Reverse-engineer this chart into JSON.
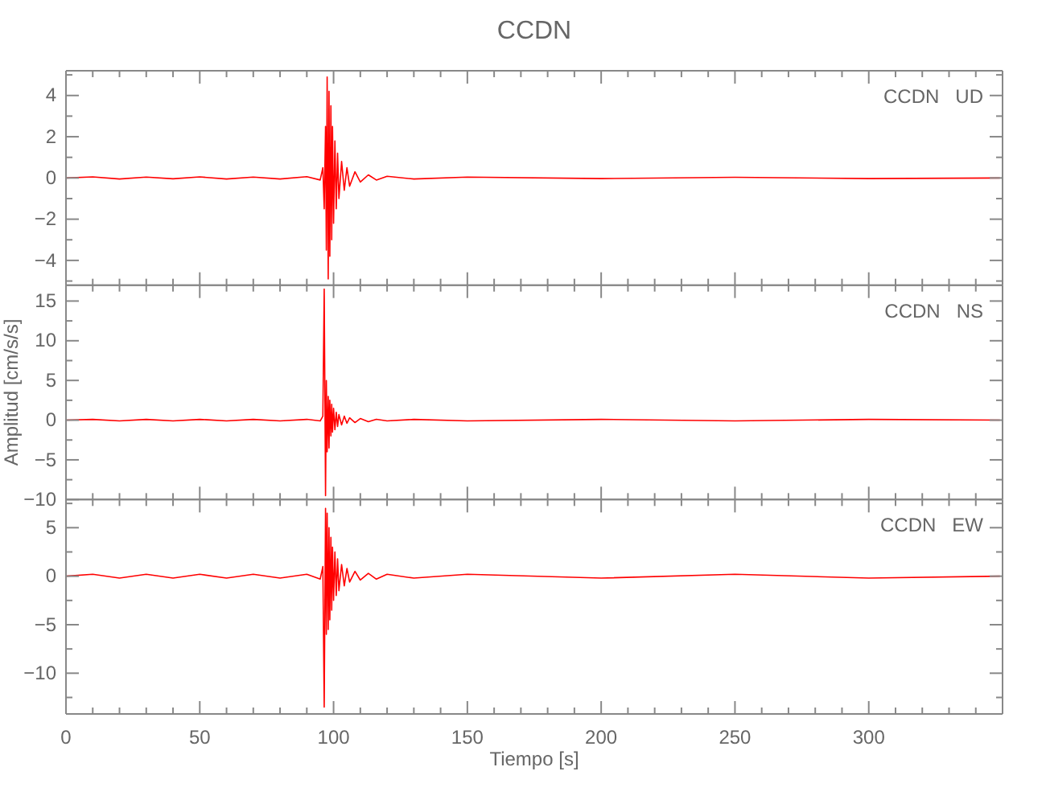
{
  "chart_data": [
    {
      "type": "line",
      "title": "CCDN",
      "annotations": [
        "CCDN   UD"
      ],
      "tick_labels": "y",
      "grid": false,
      "marker": "none",
      "line_style": "solid",
      "xlim": [
        0,
        350
      ],
      "xticks": [
        0,
        {
          "value": 10,
          "label": null
        },
        {
          "value": 20,
          "label": null
        },
        {
          "value": 30,
          "label": null
        },
        {
          "value": 40,
          "label": null
        },
        50,
        {
          "value": 60,
          "label": null
        },
        {
          "value": 70,
          "label": null
        },
        {
          "value": 80,
          "label": null
        },
        {
          "value": 90,
          "label": null
        },
        100,
        {
          "value": 110,
          "label": null
        },
        {
          "value": 120,
          "label": null
        },
        {
          "value": 130,
          "label": null
        },
        {
          "value": 140,
          "label": null
        },
        150,
        {
          "value": 160,
          "label": null
        },
        {
          "value": 170,
          "label": null
        },
        {
          "value": 180,
          "label": null
        },
        {
          "value": 190,
          "label": null
        },
        200,
        {
          "value": 210,
          "label": null
        },
        {
          "value": 220,
          "label": null
        },
        {
          "value": 230,
          "label": null
        },
        {
          "value": 240,
          "label": null
        },
        250,
        {
          "value": 260,
          "label": null
        },
        {
          "value": 270,
          "label": null
        },
        {
          "value": 280,
          "label": null
        },
        {
          "value": 290,
          "label": null
        },
        300,
        {
          "value": 310,
          "label": null
        },
        {
          "value": 320,
          "label": null
        },
        {
          "value": 330,
          "label": null
        },
        {
          "value": 340,
          "label": null
        }
      ],
      "ylim": [
        -5.2,
        5.2
      ],
      "yticks": [
        {
          "value": -5,
          "label": null
        },
        -4,
        {
          "value": -3,
          "label": null
        },
        -2,
        {
          "value": -1,
          "label": null
        },
        0,
        {
          "value": 1,
          "label": null
        },
        2,
        {
          "value": 3,
          "label": null
        },
        4,
        {
          "value": 5,
          "label": null
        }
      ],
      "series": [
        {
          "color": "#ff0000",
          "x": [
            0,
            10,
            20,
            30,
            40,
            50,
            60,
            70,
            80,
            90,
            95,
            96,
            96.5,
            97,
            97.3,
            97.6,
            98,
            98.3,
            98.6,
            99,
            99.3,
            99.6,
            100,
            100.5,
            101,
            101.5,
            102,
            103,
            104,
            105,
            106,
            108,
            110,
            113,
            116,
            120,
            130,
            150,
            200,
            250,
            300,
            349
          ],
          "values": [
            0,
            0.05,
            -0.05,
            0.04,
            -0.04,
            0.05,
            -0.05,
            0.04,
            -0.05,
            0.06,
            -0.1,
            0.5,
            -1.5,
            2.5,
            -3.5,
            4.9,
            -4.9,
            4.2,
            -3.8,
            3.5,
            -3,
            2.5,
            -2.2,
            1.8,
            -1.5,
            1.2,
            -1,
            0.8,
            -0.6,
            0.5,
            -0.4,
            0.3,
            -0.2,
            0.15,
            -0.1,
            0.08,
            -0.05,
            0.04,
            -0.03,
            0.03,
            -0.03,
            0
          ]
        }
      ]
    },
    {
      "type": "line",
      "ylabel": "Amplitud [cm/s/s]",
      "annotations": [
        "CCDN   NS"
      ],
      "tick_labels": "y",
      "grid": false,
      "marker": "none",
      "line_style": "solid",
      "xlim": [
        0,
        350
      ],
      "xticks": [
        0,
        {
          "value": 10,
          "label": null
        },
        {
          "value": 20,
          "label": null
        },
        {
          "value": 30,
          "label": null
        },
        {
          "value": 40,
          "label": null
        },
        50,
        {
          "value": 60,
          "label": null
        },
        {
          "value": 70,
          "label": null
        },
        {
          "value": 80,
          "label": null
        },
        {
          "value": 90,
          "label": null
        },
        100,
        {
          "value": 110,
          "label": null
        },
        {
          "value": 120,
          "label": null
        },
        {
          "value": 130,
          "label": null
        },
        {
          "value": 140,
          "label": null
        },
        150,
        {
          "value": 160,
          "label": null
        },
        {
          "value": 170,
          "label": null
        },
        {
          "value": 180,
          "label": null
        },
        {
          "value": 190,
          "label": null
        },
        200,
        {
          "value": 210,
          "label": null
        },
        {
          "value": 220,
          "label": null
        },
        {
          "value": 230,
          "label": null
        },
        {
          "value": 240,
          "label": null
        },
        250,
        {
          "value": 260,
          "label": null
        },
        {
          "value": 270,
          "label": null
        },
        {
          "value": 280,
          "label": null
        },
        {
          "value": 290,
          "label": null
        },
        300,
        {
          "value": 310,
          "label": null
        },
        {
          "value": 320,
          "label": null
        },
        {
          "value": 330,
          "label": null
        },
        {
          "value": 340,
          "label": null
        }
      ],
      "ylim": [
        -10,
        17
      ],
      "yticks": [
        -10,
        {
          "value": -7.5,
          "label": null
        },
        -5,
        {
          "value": -2.5,
          "label": null
        },
        0,
        {
          "value": 2.5,
          "label": null
        },
        5,
        {
          "value": 7.5,
          "label": null
        },
        10,
        {
          "value": 12.5,
          "label": null
        },
        15
      ],
      "series": [
        {
          "color": "#ff0000",
          "x": [
            0,
            10,
            20,
            30,
            40,
            50,
            60,
            70,
            80,
            90,
            95,
            96,
            96.5,
            97,
            97.3,
            97.6,
            98,
            98.3,
            98.6,
            99,
            99.3,
            99.6,
            100,
            100.5,
            101,
            101.5,
            102,
            103,
            104,
            105,
            106,
            108,
            110,
            113,
            116,
            120,
            130,
            150,
            200,
            250,
            300,
            349
          ],
          "values": [
            0,
            0.1,
            -0.1,
            0.1,
            -0.1,
            0.1,
            -0.1,
            0.1,
            -0.1,
            0.1,
            -0.1,
            0.5,
            16.5,
            -9.5,
            5,
            -4,
            3,
            -3.5,
            2.5,
            -2,
            2,
            -1.5,
            1.5,
            -1.2,
            1,
            -0.8,
            0.7,
            -0.6,
            0.5,
            -0.4,
            0.3,
            -0.3,
            0.2,
            -0.2,
            0.1,
            -0.1,
            0.1,
            -0.1,
            0.1,
            -0.1,
            0.1,
            0
          ]
        }
      ]
    },
    {
      "type": "line",
      "xlabel": "Tiempo [s]",
      "annotations": [
        "CCDN   EW"
      ],
      "grid": false,
      "marker": "none",
      "line_style": "solid",
      "xlim": [
        0,
        350
      ],
      "xticks": [
        0,
        {
          "value": 10,
          "label": null
        },
        {
          "value": 20,
          "label": null
        },
        {
          "value": 30,
          "label": null
        },
        {
          "value": 40,
          "label": null
        },
        50,
        {
          "value": 60,
          "label": null
        },
        {
          "value": 70,
          "label": null
        },
        {
          "value": 80,
          "label": null
        },
        {
          "value": 90,
          "label": null
        },
        100,
        {
          "value": 110,
          "label": null
        },
        {
          "value": 120,
          "label": null
        },
        {
          "value": 130,
          "label": null
        },
        {
          "value": 140,
          "label": null
        },
        150,
        {
          "value": 160,
          "label": null
        },
        {
          "value": 170,
          "label": null
        },
        {
          "value": 180,
          "label": null
        },
        {
          "value": 190,
          "label": null
        },
        200,
        {
          "value": 210,
          "label": null
        },
        {
          "value": 220,
          "label": null
        },
        {
          "value": 230,
          "label": null
        },
        {
          "value": 240,
          "label": null
        },
        250,
        {
          "value": 260,
          "label": null
        },
        {
          "value": 270,
          "label": null
        },
        {
          "value": 280,
          "label": null
        },
        {
          "value": 290,
          "label": null
        },
        300,
        {
          "value": 310,
          "label": null
        },
        {
          "value": 320,
          "label": null
        },
        {
          "value": 330,
          "label": null
        },
        {
          "value": 340,
          "label": null
        }
      ],
      "ylim": [
        -14.2,
        7.9
      ],
      "yticks": [
        {
          "value": -12.5,
          "label": null
        },
        -10,
        {
          "value": -7.5,
          "label": null
        },
        -5,
        {
          "value": -2.5,
          "label": null
        },
        0,
        {
          "value": 2.5,
          "label": null
        },
        5,
        {
          "value": 7.5,
          "label": null
        }
      ],
      "series": [
        {
          "color": "#ff0000",
          "x": [
            0,
            10,
            20,
            30,
            40,
            50,
            60,
            70,
            80,
            90,
            95,
            96,
            96.5,
            97,
            97.3,
            97.6,
            98,
            98.3,
            98.6,
            99,
            99.3,
            99.6,
            100,
            100.5,
            101,
            101.5,
            102,
            103,
            104,
            105,
            106,
            108,
            110,
            113,
            116,
            120,
            130,
            150,
            200,
            250,
            300,
            349
          ],
          "values": [
            0,
            0.2,
            -0.2,
            0.2,
            -0.2,
            0.2,
            -0.2,
            0.2,
            -0.2,
            0.2,
            -0.3,
            1,
            -13.5,
            7,
            -6,
            6.5,
            -5.5,
            5,
            -4.5,
            4,
            -3.5,
            3,
            -2.5,
            2.5,
            -2,
            1.8,
            -1.5,
            1.2,
            -1,
            0.8,
            -0.6,
            0.5,
            -0.4,
            0.3,
            -0.3,
            0.2,
            -0.2,
            0.2,
            -0.2,
            0.2,
            -0.2,
            0
          ]
        }
      ]
    }
  ]
}
